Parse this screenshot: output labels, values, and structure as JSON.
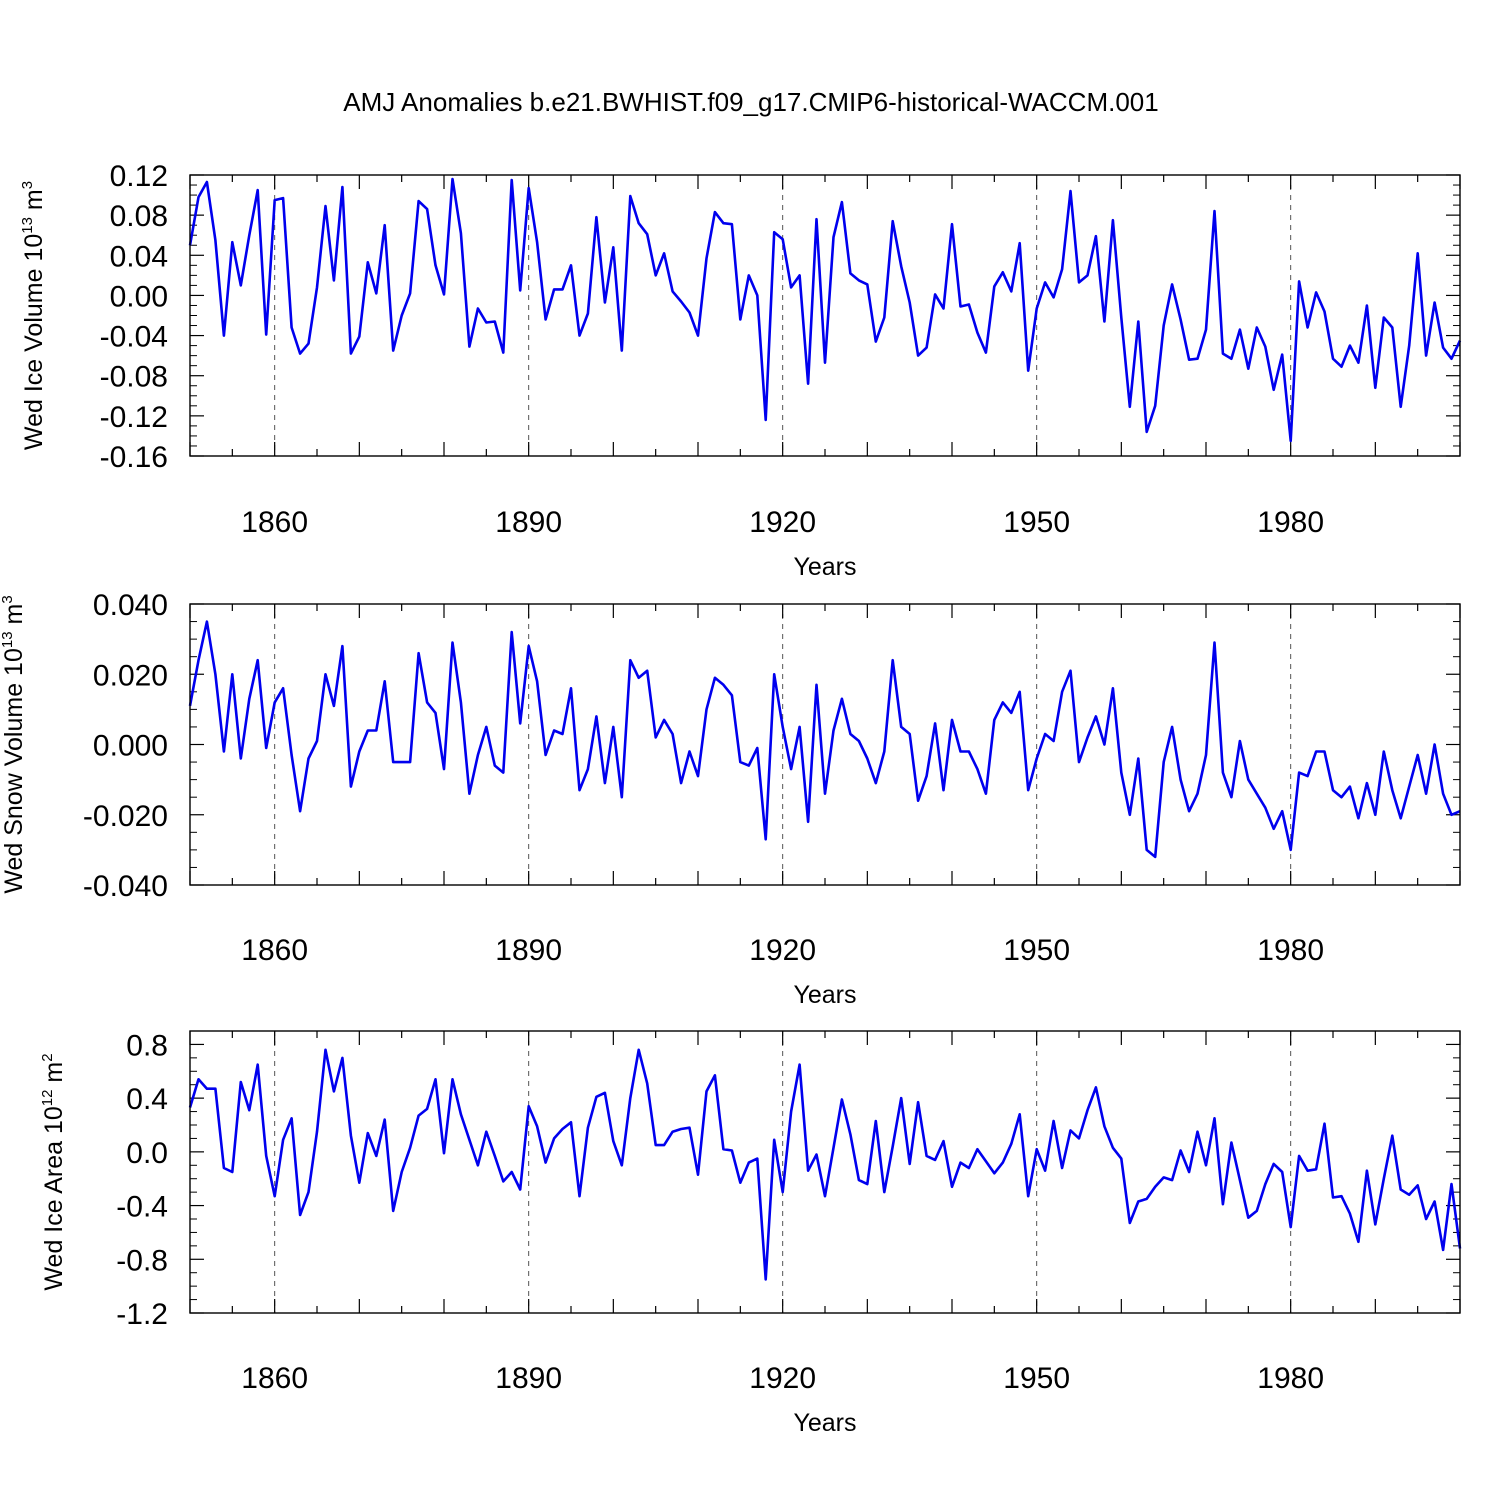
{
  "title": "AMJ Anomalies b.e21.BWHIST.f09_g17.CMIP6-historical-WACCM.001",
  "chart_data": [
    {
      "type": "line",
      "xlabel": "Years",
      "ylabel": {
        "base": "Wed Ice Volume 10",
        "exp": "13",
        "unit": " m",
        "unit_exp": "3"
      },
      "xlim": [
        1850,
        2000
      ],
      "ylim": [
        -0.16,
        0.12
      ],
      "xticks": [
        1860,
        1890,
        1920,
        1950,
        1980
      ],
      "xtick_labels": [
        "1860",
        "1890",
        "1920",
        "1950",
        "1980"
      ],
      "yticks": [
        0.12,
        0.08,
        0.04,
        0.0,
        -0.04,
        -0.08,
        -0.12,
        -0.16
      ],
      "ytick_labels": [
        "0.12",
        "0.08",
        "0.04",
        "0.00",
        "-0.04",
        "-0.08",
        "-0.12",
        "-0.16"
      ],
      "grid": "dashed vertical at labeled years",
      "x_start": 1850,
      "series": [
        {
          "name": "Wed Ice Volume",
          "color": "#0000ee",
          "values": [
            0.05,
            0.098,
            0.113,
            0.055,
            -0.04,
            0.053,
            0.01,
            0.06,
            0.105,
            -0.039,
            0.095,
            0.097,
            -0.032,
            -0.058,
            -0.048,
            0.008,
            0.089,
            0.015,
            0.108,
            -0.058,
            -0.041,
            0.033,
            0.002,
            0.07,
            -0.055,
            -0.02,
            0.002,
            0.094,
            0.086,
            0.03,
            0.001,
            0.116,
            0.062,
            -0.051,
            -0.013,
            -0.027,
            -0.026,
            -0.057,
            0.115,
            0.005,
            0.107,
            0.053,
            -0.024,
            0.006,
            0.006,
            0.03,
            -0.04,
            -0.018,
            0.078,
            -0.007,
            0.048,
            -0.055,
            0.099,
            0.072,
            0.061,
            0.02,
            0.042,
            0.004,
            -0.006,
            -0.017,
            -0.04,
            0.037,
            0.083,
            0.072,
            0.071,
            -0.024,
            0.02,
            0.0,
            -0.124,
            0.063,
            0.056,
            0.008,
            0.02,
            -0.088,
            0.076,
            -0.067,
            0.058,
            0.093,
            0.022,
            0.015,
            0.011,
            -0.046,
            -0.022,
            0.074,
            0.029,
            -0.007,
            -0.06,
            -0.052,
            0.001,
            -0.013,
            0.071,
            -0.011,
            -0.009,
            -0.037,
            -0.057,
            0.009,
            0.023,
            0.004,
            0.052,
            -0.075,
            -0.013,
            0.013,
            -0.002,
            0.026,
            0.104,
            0.013,
            0.02,
            0.059,
            -0.026,
            0.075,
            -0.022,
            -0.111,
            -0.026,
            -0.136,
            -0.11,
            -0.03,
            0.011,
            -0.024,
            -0.064,
            -0.063,
            -0.034,
            0.084,
            -0.058,
            -0.063,
            -0.034,
            -0.073,
            -0.032,
            -0.051,
            -0.094,
            -0.059,
            -0.145,
            0.014,
            -0.032,
            0.003,
            -0.016,
            -0.063,
            -0.071,
            -0.05,
            -0.067,
            -0.01,
            -0.092,
            -0.022,
            -0.032,
            -0.111,
            -0.05,
            0.042,
            -0.06,
            -0.007,
            -0.052,
            -0.063,
            -0.045
          ]
        }
      ]
    },
    {
      "type": "line",
      "xlabel": "Years",
      "ylabel": {
        "base": "Wed Snow Volume 10",
        "exp": "13",
        "unit": " m",
        "unit_exp": "3"
      },
      "xlim": [
        1850,
        2000
      ],
      "ylim": [
        -0.04,
        0.04
      ],
      "xticks": [
        1860,
        1890,
        1920,
        1950,
        1980
      ],
      "xtick_labels": [
        "1860",
        "1890",
        "1920",
        "1950",
        "1980"
      ],
      "yticks": [
        0.04,
        0.02,
        0.0,
        -0.02,
        -0.04
      ],
      "ytick_labels": [
        "0.040",
        "0.020",
        "0.000",
        "-0.020",
        "-0.040"
      ],
      "grid": "dashed vertical at labeled years",
      "x_start": 1850,
      "series": [
        {
          "name": "Wed Snow Volume",
          "color": "#0000ee",
          "values": [
            0.011,
            0.024,
            0.035,
            0.02,
            -0.002,
            0.02,
            -0.004,
            0.013,
            0.024,
            -0.001,
            0.012,
            0.016,
            -0.003,
            -0.019,
            -0.004,
            0.001,
            0.02,
            0.011,
            0.028,
            -0.012,
            -0.002,
            0.004,
            0.004,
            0.018,
            -0.005,
            -0.005,
            -0.005,
            0.026,
            0.012,
            0.009,
            -0.007,
            0.029,
            0.012,
            -0.014,
            -0.003,
            0.005,
            -0.006,
            -0.008,
            0.032,
            0.006,
            0.028,
            0.018,
            -0.003,
            0.004,
            0.003,
            0.016,
            -0.013,
            -0.007,
            0.008,
            -0.011,
            0.005,
            -0.015,
            0.024,
            0.019,
            0.021,
            0.002,
            0.007,
            0.003,
            -0.011,
            -0.002,
            -0.009,
            0.01,
            0.019,
            0.017,
            0.014,
            -0.005,
            -0.006,
            -0.001,
            -0.027,
            0.02,
            0.005,
            -0.007,
            0.005,
            -0.022,
            0.017,
            -0.014,
            0.004,
            0.013,
            0.003,
            0.001,
            -0.004,
            -0.011,
            -0.002,
            0.024,
            0.005,
            0.003,
            -0.016,
            -0.009,
            0.006,
            -0.013,
            0.007,
            -0.002,
            -0.002,
            -0.007,
            -0.014,
            0.007,
            0.012,
            0.009,
            0.015,
            -0.013,
            -0.004,
            0.003,
            0.001,
            0.015,
            0.021,
            -0.005,
            0.002,
            0.008,
            0.0,
            0.016,
            -0.008,
            -0.02,
            -0.004,
            -0.03,
            -0.032,
            -0.005,
            0.005,
            -0.01,
            -0.019,
            -0.014,
            -0.003,
            0.029,
            -0.008,
            -0.015,
            0.001,
            -0.01,
            -0.014,
            -0.018,
            -0.024,
            -0.019,
            -0.03,
            -0.008,
            -0.009,
            -0.002,
            -0.002,
            -0.013,
            -0.015,
            -0.012,
            -0.021,
            -0.011,
            -0.02,
            -0.002,
            -0.013,
            -0.021,
            -0.012,
            -0.003,
            -0.014,
            0.0,
            -0.014,
            -0.02,
            -0.019
          ]
        }
      ]
    },
    {
      "type": "line",
      "xlabel": "Years",
      "ylabel": {
        "base": "Wed Ice Area 10",
        "exp": "12",
        "unit": " m",
        "unit_exp": "2"
      },
      "xlim": [
        1850,
        2000
      ],
      "ylim": [
        -1.2,
        0.9
      ],
      "xticks": [
        1860,
        1890,
        1920,
        1950,
        1980
      ],
      "xtick_labels": [
        "1860",
        "1890",
        "1920",
        "1950",
        "1980"
      ],
      "yticks": [
        0.8,
        0.4,
        0.0,
        -0.4,
        -0.8,
        -1.2
      ],
      "ytick_labels": [
        "0.8",
        "0.4",
        "0.0",
        "-0.4",
        "-0.8",
        "-1.2"
      ],
      "grid": "dashed vertical at labeled years",
      "x_start": 1850,
      "series": [
        {
          "name": "Wed Ice Area",
          "color": "#0000ee",
          "values": [
            0.33,
            0.54,
            0.47,
            0.47,
            -0.12,
            -0.15,
            0.52,
            0.31,
            0.65,
            -0.03,
            -0.33,
            0.09,
            0.25,
            -0.47,
            -0.3,
            0.15,
            0.76,
            0.45,
            0.7,
            0.12,
            -0.23,
            0.14,
            -0.03,
            0.24,
            -0.44,
            -0.15,
            0.03,
            0.27,
            0.32,
            0.54,
            -0.01,
            0.54,
            0.28,
            0.09,
            -0.1,
            0.15,
            -0.03,
            -0.22,
            -0.15,
            -0.28,
            0.34,
            0.19,
            -0.08,
            0.1,
            0.17,
            0.22,
            -0.33,
            0.18,
            0.41,
            0.44,
            0.08,
            -0.1,
            0.4,
            0.76,
            0.51,
            0.05,
            0.05,
            0.15,
            0.17,
            0.18,
            -0.17,
            0.45,
            0.57,
            0.02,
            0.01,
            -0.23,
            -0.08,
            -0.05,
            -0.95,
            0.09,
            -0.3,
            0.3,
            0.65,
            -0.14,
            -0.02,
            -0.33,
            0.03,
            0.39,
            0.13,
            -0.21,
            -0.24,
            0.23,
            -0.3,
            0.04,
            0.4,
            -0.09,
            0.37,
            -0.03,
            -0.06,
            0.08,
            -0.26,
            -0.08,
            -0.12,
            0.02,
            -0.07,
            -0.16,
            -0.08,
            0.06,
            0.28,
            -0.33,
            0.02,
            -0.14,
            0.23,
            -0.12,
            0.16,
            0.1,
            0.31,
            0.48,
            0.19,
            0.03,
            -0.05,
            -0.53,
            -0.37,
            -0.35,
            -0.26,
            -0.19,
            -0.21,
            0.01,
            -0.15,
            0.15,
            -0.1,
            0.25,
            -0.39,
            0.07,
            -0.21,
            -0.49,
            -0.44,
            -0.24,
            -0.09,
            -0.15,
            -0.56,
            -0.03,
            -0.14,
            -0.13,
            0.21,
            -0.34,
            -0.33,
            -0.46,
            -0.67,
            -0.14,
            -0.54,
            -0.2,
            0.12,
            -0.28,
            -0.32,
            -0.25,
            -0.5,
            -0.37,
            -0.73,
            -0.24,
            -0.72
          ]
        }
      ]
    }
  ]
}
